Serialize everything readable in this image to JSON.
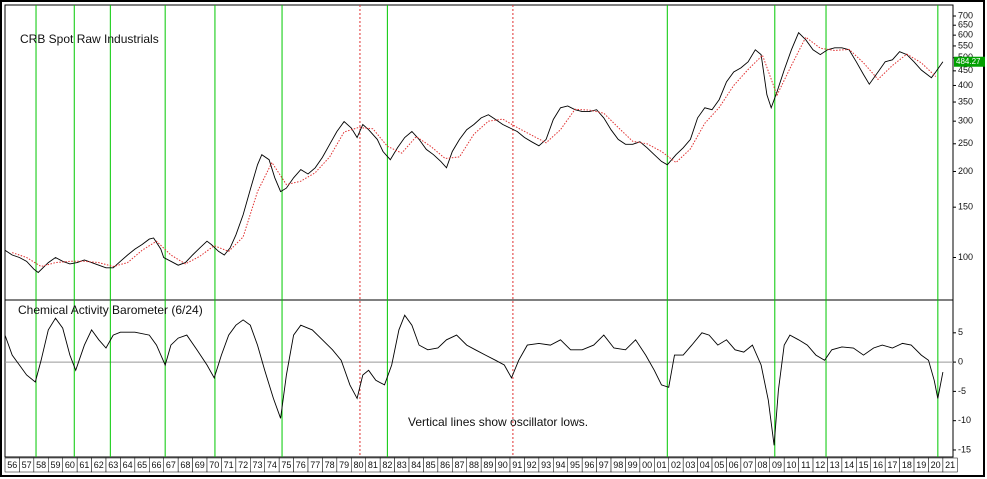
{
  "chart_data": [
    {
      "type": "line",
      "title": "CRB Spot Raw Industrials",
      "log": true,
      "ylim": [
        71,
        765
      ],
      "yticks": [
        700,
        650,
        600,
        550,
        500,
        450,
        400,
        350,
        300,
        250,
        200,
        150,
        100
      ],
      "series": [
        {
          "color": "#000000",
          "style": "solid",
          "x": [
            1956,
            1956.5,
            1957,
            1957.5,
            1958,
            1958.3,
            1959,
            1959.5,
            1960,
            1960.5,
            1961,
            1961.5,
            1962,
            1962.5,
            1963,
            1963.5,
            1964,
            1964.5,
            1965,
            1965.5,
            1966,
            1966.3,
            1966.8,
            1967,
            1967.5,
            1968,
            1968.5,
            1969,
            1969.5,
            1970,
            1970.3,
            1970.8,
            1971.2,
            1971.6,
            1972,
            1972.5,
            1973,
            1973.5,
            1973.8,
            1974.3,
            1974.7,
            1975.1,
            1975.5,
            1976,
            1976.5,
            1977,
            1977.5,
            1978,
            1978.5,
            1979,
            1979.5,
            1980,
            1980.4,
            1980.8,
            1981.2,
            1981.8,
            1982.2,
            1982.7,
            1983.2,
            1983.7,
            1984.2,
            1984.7,
            1985.2,
            1985.7,
            1986.2,
            1986.6,
            1987,
            1987.5,
            1988,
            1988.5,
            1989,
            1989.5,
            1990,
            1990.5,
            1991,
            1991.5,
            1992,
            1992.5,
            1993,
            1993.5,
            1994,
            1994.5,
            1995,
            1995.5,
            1996,
            1996.5,
            1997,
            1997.5,
            1998,
            1998.5,
            1999,
            1999.5,
            2000,
            2000.5,
            2001,
            2001.5,
            2001.9,
            2002.5,
            2003,
            2003.5,
            2004,
            2004.5,
            2005,
            2005.5,
            2006,
            2006.5,
            2007,
            2007.5,
            2008,
            2008.4,
            2008.8,
            2009.1,
            2009.5,
            2010,
            2010.5,
            2011,
            2011.5,
            2012,
            2012.5,
            2013,
            2013.5,
            2014,
            2014.5,
            2015,
            2015.5,
            2015.9,
            2016.5,
            2017,
            2017.5,
            2018,
            2018.5,
            2019,
            2019.5,
            2020.2,
            2020.5,
            2021
          ],
          "values": [
            106,
            102,
            100,
            97,
            91,
            88.6,
            96,
            100,
            97,
            95,
            96,
            98,
            96,
            94,
            92,
            92,
            97,
            102,
            107,
            111,
            116,
            117,
            107,
            100,
            97,
            94,
            96,
            102,
            108,
            114,
            111,
            105,
            102,
            108,
            120,
            141,
            173,
            211,
            229,
            220,
            190,
            170,
            175,
            190,
            203,
            196,
            206,
            224,
            249,
            276,
            299,
            284,
            263,
            292,
            280,
            259,
            235,
            220,
            242,
            263,
            276,
            259,
            239,
            229,
            217,
            206,
            235,
            259,
            280,
            292,
            308,
            316,
            304,
            292,
            284,
            276,
            263,
            254,
            246,
            259,
            304,
            334,
            339,
            329,
            324,
            324,
            329,
            308,
            280,
            259,
            249,
            249,
            254,
            242,
            229,
            217,
            211,
            229,
            242,
            259,
            308,
            334,
            329,
            357,
            412,
            446,
            461,
            484,
            533,
            513,
            371,
            334,
            380,
            453,
            533,
            612,
            578,
            533,
            513,
            533,
            542,
            542,
            533,
            484,
            437,
            404,
            446,
            484,
            492,
            525,
            513,
            484,
            453,
            426,
            446,
            484.27
          ]
        },
        {
          "color": "#e03030",
          "style": "dotted",
          "x": [
            1956.5,
            1957.5,
            1958.5,
            1959.5,
            1960.5,
            1961.5,
            1962.5,
            1963.5,
            1964.5,
            1965.5,
            1966.5,
            1967.5,
            1968.5,
            1969.5,
            1970.5,
            1971.5,
            1972.5,
            1973.5,
            1974.5,
            1975.5,
            1976.5,
            1977.5,
            1978.5,
            1979.5,
            1980.5,
            1981.5,
            1982.5,
            1983.5,
            1984.5,
            1985.5,
            1986.5,
            1987.5,
            1988.5,
            1989.5,
            1990.5,
            1991.5,
            1992.5,
            1993.5,
            1994.5,
            1995.5,
            1996.5,
            1997.5,
            1998.5,
            1999.5,
            2000.5,
            2001.5,
            2002.5,
            2003.5,
            2004.5,
            2005.5,
            2006.5,
            2007.5,
            2008.5,
            2009.5,
            2010.5,
            2011.5,
            2012.5,
            2013.5,
            2014.5,
            2015.5,
            2016.5,
            2017.5,
            2018.5,
            2019.5,
            2020.5
          ],
          "values": [
            104,
            100,
            93,
            96,
            97,
            97,
            96,
            93,
            96,
            106,
            114,
            102,
            95,
            101,
            110,
            105,
            118,
            170,
            215,
            180,
            185,
            198,
            225,
            275,
            285,
            282,
            245,
            232,
            265,
            245,
            222,
            225,
            270,
            300,
            305,
            285,
            268,
            252,
            280,
            330,
            328,
            320,
            285,
            255,
            250,
            235,
            215,
            240,
            295,
            335,
            400,
            455,
            510,
            370,
            470,
            590,
            540,
            530,
            535,
            480,
            420,
            470,
            515,
            480,
            430
          ]
        }
      ]
    },
    {
      "type": "line",
      "title": "Chemical Activity Barometer (6/24)",
      "annotation": "Vertical lines show oscillator lows.",
      "ylim": [
        -16.2,
        10.6
      ],
      "yticks": [
        5,
        0,
        -5,
        -10,
        -15
      ],
      "zero_line": true,
      "xlim": [
        1956,
        2021.7
      ],
      "xticks": [
        {
          "value": 1956,
          "label": "56"
        },
        {
          "value": 1957,
          "label": "57"
        },
        {
          "value": 1958,
          "label": "58"
        },
        {
          "value": 1959,
          "label": "59"
        },
        {
          "value": 1960,
          "label": "60"
        },
        {
          "value": 1961,
          "label": "61"
        },
        {
          "value": 1962,
          "label": "62"
        },
        {
          "value": 1963,
          "label": "63"
        },
        {
          "value": 1964,
          "label": "64"
        },
        {
          "value": 1965,
          "label": "65"
        },
        {
          "value": 1966,
          "label": "66"
        },
        {
          "value": 1967,
          "label": "67"
        },
        {
          "value": 1968,
          "label": "68"
        },
        {
          "value": 1969,
          "label": "69"
        },
        {
          "value": 1970,
          "label": "70"
        },
        {
          "value": 1971,
          "label": "71"
        },
        {
          "value": 1972,
          "label": "72"
        },
        {
          "value": 1973,
          "label": "73"
        },
        {
          "value": 1974,
          "label": "74"
        },
        {
          "value": 1975,
          "label": "75"
        },
        {
          "value": 1976,
          "label": "76"
        },
        {
          "value": 1977,
          "label": "77"
        },
        {
          "value": 1978,
          "label": "78"
        },
        {
          "value": 1979,
          "label": "79"
        },
        {
          "value": 1980,
          "label": "80"
        },
        {
          "value": 1981,
          "label": "81"
        },
        {
          "value": 1982,
          "label": "82"
        },
        {
          "value": 1983,
          "label": "83"
        },
        {
          "value": 1984,
          "label": "84"
        },
        {
          "value": 1985,
          "label": "85"
        },
        {
          "value": 1986,
          "label": "86"
        },
        {
          "value": 1987,
          "label": "87"
        },
        {
          "value": 1988,
          "label": "88"
        },
        {
          "value": 1989,
          "label": "89"
        },
        {
          "value": 1990,
          "label": "90"
        },
        {
          "value": 1991,
          "label": "91"
        },
        {
          "value": 1992,
          "label": "92"
        },
        {
          "value": 1993,
          "label": "93"
        },
        {
          "value": 1994,
          "label": "94"
        },
        {
          "value": 1995,
          "label": "95"
        },
        {
          "value": 1996,
          "label": "96"
        },
        {
          "value": 1997,
          "label": "97"
        },
        {
          "value": 1998,
          "label": "98"
        },
        {
          "value": 1999,
          "label": "99"
        },
        {
          "value": 2000,
          "label": "00"
        },
        {
          "value": 2001,
          "label": "01"
        },
        {
          "value": 2002,
          "label": "02"
        },
        {
          "value": 2003,
          "label": "03"
        },
        {
          "value": 2004,
          "label": "04"
        },
        {
          "value": 2005,
          "label": "05"
        },
        {
          "value": 2006,
          "label": "06"
        },
        {
          "value": 2007,
          "label": "07"
        },
        {
          "value": 2008,
          "label": "08"
        },
        {
          "value": 2009,
          "label": "09"
        },
        {
          "value": 2010,
          "label": "10"
        },
        {
          "value": 2011,
          "label": "11"
        },
        {
          "value": 2012,
          "label": "12"
        },
        {
          "value": 2013,
          "label": "13"
        },
        {
          "value": 2014,
          "label": "14"
        },
        {
          "value": 2015,
          "label": "15"
        },
        {
          "value": 2016,
          "label": "16"
        },
        {
          "value": 2017,
          "label": "17"
        },
        {
          "value": 2018,
          "label": "18"
        },
        {
          "value": 2019,
          "label": "19"
        },
        {
          "value": 2020,
          "label": "20"
        },
        {
          "value": 2021,
          "label": "21"
        }
      ],
      "oscillator_lows": [
        1958.15,
        1960.8,
        1963.3,
        1967.1,
        1970.55,
        1975.2,
        1982.5,
        2001.9,
        2009.35,
        2012.9,
        2020.65
      ],
      "oscillator_lows_color": "#00c800",
      "other_lows": [
        1980.6,
        1991.2
      ],
      "other_lows_color": "#e03030",
      "series": [
        {
          "color": "#000000",
          "style": "solid",
          "x": [
            1956,
            1956.5,
            1957,
            1957.5,
            1958.1,
            1958.5,
            1959,
            1959.5,
            1960,
            1960.5,
            1960.9,
            1961.5,
            1962,
            1962.5,
            1963,
            1963.5,
            1964,
            1965,
            1966,
            1966.5,
            1967.1,
            1967.5,
            1968,
            1968.6,
            1969.3,
            1970,
            1970.5,
            1971,
            1971.5,
            1972,
            1972.5,
            1973,
            1973.5,
            1974,
            1974.6,
            1975.1,
            1975.5,
            1976,
            1976.5,
            1977.3,
            1978,
            1978.7,
            1979.3,
            1979.9,
            1980.4,
            1980.8,
            1981.2,
            1981.7,
            1982.3,
            1982.8,
            1983.3,
            1983.7,
            1984.2,
            1984.7,
            1985.3,
            1986,
            1986.6,
            1987.3,
            1988,
            1988.6,
            1989.3,
            1990,
            1990.6,
            1991.1,
            1991.6,
            1992.2,
            1993,
            1993.8,
            1994.5,
            1995.2,
            1996,
            1996.8,
            1997.5,
            1998.2,
            1999,
            1999.7,
            2000.4,
            2001,
            2001.5,
            2002,
            2002.4,
            2003,
            2003.6,
            2004.3,
            2004.8,
            2005.4,
            2006,
            2006.6,
            2007.2,
            2007.8,
            2008.4,
            2008.9,
            2009.3,
            2009.6,
            2010,
            2010.4,
            2011,
            2011.6,
            2012.2,
            2012.8,
            2013.3,
            2014,
            2014.8,
            2015.5,
            2016.2,
            2016.8,
            2017.5,
            2018.2,
            2018.8,
            2019.5,
            2020,
            2020.4,
            2020.65,
            2021
          ],
          "values": [
            4.6,
            1.2,
            -0.5,
            -2.2,
            -3.4,
            0.3,
            5.5,
            7.5,
            5.8,
            1.2,
            -1.4,
            2.9,
            5.5,
            3.8,
            2.4,
            4.6,
            5.1,
            5.1,
            4.6,
            2.9,
            -0.5,
            2.9,
            4.1,
            4.6,
            2.1,
            -0.5,
            -2.7,
            1.2,
            4.6,
            6.3,
            7.2,
            6.3,
            2.9,
            -1.4,
            -6.2,
            -9.6,
            -2.2,
            4.6,
            6.3,
            5.5,
            3.8,
            2.1,
            0.3,
            -3.9,
            -6.2,
            -2.2,
            -1.4,
            -3.1,
            -3.9,
            -0.5,
            5.5,
            8.0,
            6.3,
            2.9,
            2.1,
            2.4,
            3.8,
            4.6,
            2.9,
            2.1,
            1.2,
            0.3,
            -0.5,
            -2.7,
            0.3,
            2.9,
            3.2,
            2.9,
            3.8,
            2.1,
            2.1,
            2.9,
            4.6,
            2.4,
            2.1,
            3.8,
            1.2,
            -1.4,
            -3.9,
            -4.3,
            1.2,
            1.2,
            2.9,
            5.0,
            4.6,
            2.9,
            3.8,
            2.1,
            1.7,
            2.9,
            -0.5,
            -6.5,
            -14.2,
            -4.8,
            2.9,
            4.6,
            3.8,
            2.9,
            1.2,
            0.3,
            2.1,
            2.6,
            2.4,
            1.2,
            2.4,
            2.9,
            2.4,
            3.2,
            2.9,
            1.2,
            0.3,
            -3.1,
            -6.2,
            -1.7
          ]
        }
      ]
    }
  ]
}
